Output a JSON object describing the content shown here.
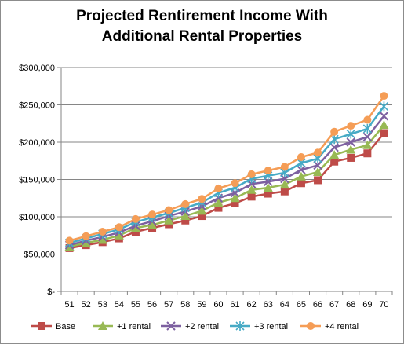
{
  "chart_data": {
    "type": "line",
    "title_lines": [
      "Projected Rentirement Income With",
      "Additional Rental Properties"
    ],
    "xlabel": "",
    "ylabel": "",
    "categories": [
      "51",
      "52",
      "53",
      "54",
      "55",
      "56",
      "57",
      "58",
      "59",
      "60",
      "61",
      "62",
      "63",
      "64",
      "65",
      "66",
      "67",
      "68",
      "69",
      "70"
    ],
    "ylim": [
      0,
      300000
    ],
    "yticks": [
      0,
      50000,
      100000,
      150000,
      200000,
      250000,
      300000
    ],
    "ytick_labels": [
      "$-",
      "$50,000",
      "$100,000",
      "$150,000",
      "$200,000",
      "$250,000",
      "$300,000"
    ],
    "grid": true,
    "legend_position": "bottom",
    "series": [
      {
        "name": "Base",
        "color": "#be4b48",
        "marker": "square",
        "values": [
          58000,
          62000,
          66000,
          71000,
          80000,
          85000,
          90000,
          95000,
          101000,
          112000,
          118000,
          127000,
          131000,
          134000,
          145000,
          149000,
          174000,
          179000,
          185000,
          212000
        ]
      },
      {
        "name": "+1 rental",
        "color": "#98b954",
        "marker": "triangle",
        "values": [
          60000,
          65000,
          69000,
          75000,
          85000,
          89000,
          95000,
          101000,
          108000,
          119000,
          125000,
          136000,
          139000,
          143000,
          154000,
          160000,
          183000,
          190000,
          196000,
          223000
        ]
      },
      {
        "name": "+2 rental",
        "color": "#7d60a0",
        "marker": "x",
        "values": [
          62000,
          68000,
          73000,
          79000,
          88000,
          94000,
          101000,
          107000,
          114000,
          125000,
          132000,
          144000,
          147000,
          151000,
          163000,
          169000,
          193000,
          200000,
          207000,
          235000
        ]
      },
      {
        "name": "+3 rental",
        "color": "#46aac5",
        "marker": "asterisk",
        "values": [
          65000,
          71000,
          77000,
          83000,
          93000,
          99000,
          105000,
          112000,
          119000,
          132000,
          139000,
          151000,
          155000,
          159000,
          172000,
          178000,
          204000,
          211000,
          218000,
          248000
        ]
      },
      {
        "name": "+4 rental",
        "color": "#f59d56",
        "marker": "circle",
        "values": [
          68000,
          74000,
          80000,
          86000,
          97000,
          103000,
          109000,
          117000,
          124000,
          138000,
          145000,
          157000,
          162000,
          167000,
          180000,
          186000,
          214000,
          222000,
          230000,
          262000
        ]
      }
    ]
  }
}
